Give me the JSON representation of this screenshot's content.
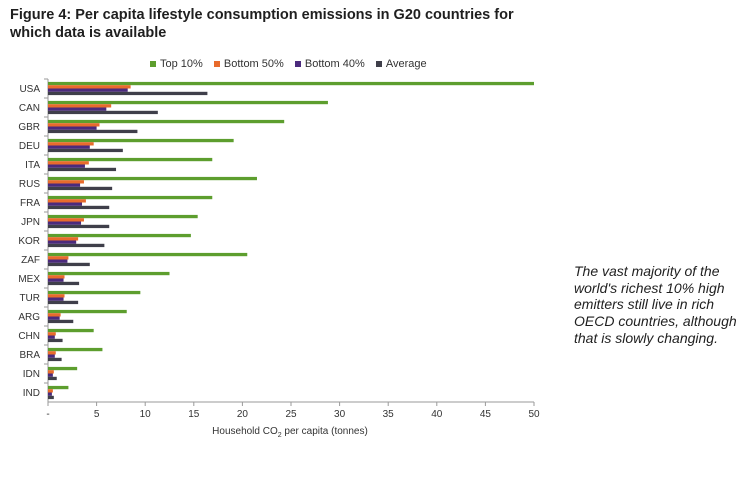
{
  "title": "Figure 4: Per capita lifestyle consumption emissions in G20 countries for which data is available",
  "callout": "The vast majority of the world's richest 10% high emitters still live in rich OECD countries, although that is slowly changing.",
  "colors": {
    "top10": "#5d9e2e",
    "bottom50": "#e86b2c",
    "bottom40": "#4b2a7d",
    "average": "#3f3f4a",
    "axis": "#9a9a9a"
  },
  "chart_data": {
    "type": "bar",
    "orientation": "horizontal",
    "categories": [
      "USA",
      "CAN",
      "GBR",
      "DEU",
      "ITA",
      "RUS",
      "FRA",
      "JPN",
      "KOR",
      "ZAF",
      "MEX",
      "TUR",
      "ARG",
      "CHN",
      "BRA",
      "IDN",
      "IND"
    ],
    "series": [
      {
        "name": "Top 10%",
        "color": "#5d9e2e",
        "values": [
          50.0,
          28.8,
          24.3,
          19.1,
          16.9,
          21.5,
          16.9,
          15.4,
          14.7,
          20.5,
          12.5,
          9.5,
          8.1,
          4.7,
          5.6,
          3.0,
          2.1
        ]
      },
      {
        "name": "Bottom 50%",
        "color": "#e86b2c",
        "values": [
          8.5,
          6.5,
          5.3,
          4.7,
          4.2,
          3.7,
          3.9,
          3.7,
          3.1,
          2.1,
          1.7,
          1.7,
          1.3,
          0.8,
          0.8,
          0.6,
          0.5
        ]
      },
      {
        "name": "Bottom 40%",
        "color": "#4b2a7d",
        "values": [
          8.2,
          6.0,
          5.0,
          4.3,
          3.8,
          3.3,
          3.5,
          3.4,
          2.9,
          2.0,
          1.6,
          1.6,
          1.2,
          0.7,
          0.7,
          0.5,
          0.4
        ]
      },
      {
        "name": "Average",
        "color": "#3f3f4a",
        "values": [
          16.4,
          11.3,
          9.2,
          7.7,
          7.0,
          6.6,
          6.3,
          6.3,
          5.8,
          4.3,
          3.2,
          3.1,
          2.6,
          1.5,
          1.4,
          0.9,
          0.6
        ]
      }
    ],
    "xlabel_pre": "Household CO",
    "xlabel_sub": "2",
    "xlabel_post": " per capita (tonnes)",
    "xticks": [
      "-",
      "5",
      "10",
      "15",
      "20",
      "25",
      "30",
      "35",
      "40",
      "45",
      "50"
    ],
    "xlim": [
      0,
      50
    ],
    "grid": false,
    "legend": "top"
  }
}
